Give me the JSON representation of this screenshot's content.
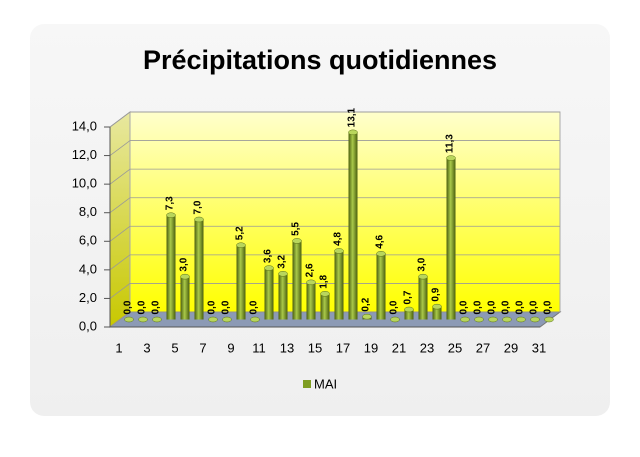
{
  "chart_data": {
    "type": "bar3d",
    "title": "Précipitations quotidiennes",
    "categories": [
      1,
      null,
      3,
      null,
      5,
      null,
      7,
      null,
      9,
      null,
      11,
      null,
      13,
      null,
      15,
      null,
      17,
      null,
      19,
      null,
      21,
      null,
      23,
      null,
      25,
      null,
      27,
      null,
      29,
      null,
      31
    ],
    "series": [
      {
        "name": "MAI",
        "color": "#7f9e22",
        "values": [
          0,
          0,
          0,
          7.3,
          3,
          7,
          0,
          0,
          5.2,
          0,
          3.6,
          3.2,
          5.5,
          2.6,
          1.8,
          4.8,
          13.1,
          0.2,
          4.6,
          0,
          0.7,
          3,
          0.9,
          11.3,
          0,
          0,
          0,
          0,
          0,
          0,
          0
        ],
        "value_labels": [
          "0,0",
          "0,0",
          "0,0",
          "7,3",
          "3,0",
          "7,0",
          "0,0",
          "0,0",
          "5,2",
          "0,0",
          "3,6",
          "3,2",
          "5,5",
          "2,6",
          "1,8",
          "4,8",
          "13,1",
          "0,2",
          "4,6",
          "0,0",
          "0,7",
          "3,0",
          "0,9",
          "11,3",
          "0,0",
          "0,0",
          "0,0",
          "0,0",
          "0,0",
          "0,0",
          "0,0"
        ]
      }
    ],
    "ylim": [
      0,
      14
    ],
    "yticks": [
      {
        "value": 0,
        "label": "0,0"
      },
      {
        "value": 2,
        "label": "2,0"
      },
      {
        "value": 4,
        "label": "4,0"
      },
      {
        "value": 6,
        "label": "6,0"
      },
      {
        "value": 8,
        "label": "8,0"
      },
      {
        "value": 10,
        "label": "10,0"
      },
      {
        "value": 12,
        "label": "12,0"
      },
      {
        "value": 14,
        "label": "14,0"
      }
    ],
    "grid": true,
    "legend": "bottom"
  }
}
